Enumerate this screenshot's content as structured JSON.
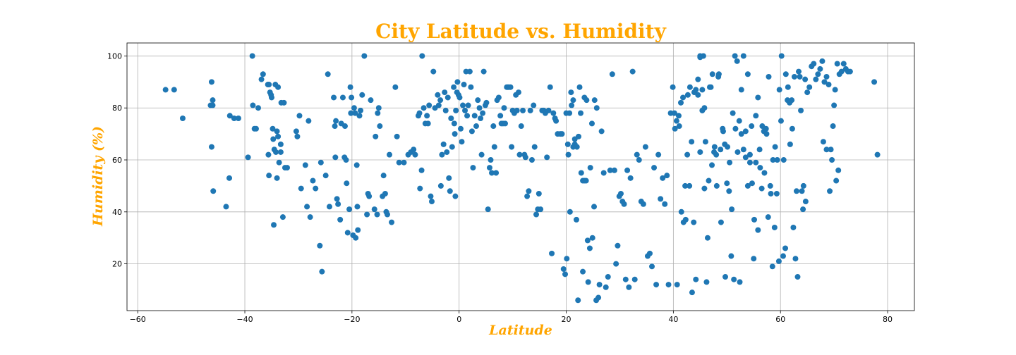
{
  "colors": {
    "title": "#FFA500",
    "axis_labels": "#FFA500",
    "points": "#1F77B4"
  },
  "chart_data": {
    "type": "scatter",
    "title": "City Latitude vs. Humidity",
    "xlabel": "Latitude",
    "ylabel": "Humidity (%)",
    "xlim": [
      -62,
      85
    ],
    "ylim": [
      2,
      105
    ],
    "xticks": [
      -60,
      -40,
      -20,
      0,
      20,
      40,
      60,
      80
    ],
    "yticks": [
      20,
      40,
      60,
      80,
      100
    ],
    "grid": true,
    "points": [
      [
        -54.8,
        87
      ],
      [
        -53.2,
        87
      ],
      [
        -51.6,
        76
      ],
      [
        -46.4,
        81
      ],
      [
        -46.2,
        90
      ],
      [
        -46,
        81
      ],
      [
        -46,
        83
      ],
      [
        -46.2,
        65
      ],
      [
        -45.9,
        48
      ],
      [
        -43.5,
        42
      ],
      [
        -42.9,
        53
      ],
      [
        -42.8,
        77
      ],
      [
        -42,
        76
      ],
      [
        -41.2,
        76
      ],
      [
        -39.4,
        61
      ],
      [
        -38.6,
        100
      ],
      [
        -38.5,
        81
      ],
      [
        -38.2,
        72
      ],
      [
        -37.9,
        72
      ],
      [
        -37.5,
        80
      ],
      [
        -36.9,
        91
      ],
      [
        -36.6,
        93
      ],
      [
        -35.7,
        89
      ],
      [
        -35.5,
        89
      ],
      [
        -35.3,
        86
      ],
      [
        -35.1,
        85
      ],
      [
        -35,
        84
      ],
      [
        -35.6,
        62
      ],
      [
        -35.5,
        54
      ],
      [
        -34.8,
        72
      ],
      [
        -34.7,
        68
      ],
      [
        -34.6,
        35
      ],
      [
        -34.5,
        64
      ],
      [
        -34.3,
        89
      ],
      [
        -34.2,
        63
      ],
      [
        -34,
        71
      ],
      [
        -33.8,
        69
      ],
      [
        -33.8,
        88
      ],
      [
        -33.6,
        59
      ],
      [
        -33.3,
        66
      ],
      [
        -33.3,
        63
      ],
      [
        -34,
        53
      ],
      [
        -33.2,
        82
      ],
      [
        -32.9,
        38
      ],
      [
        -32.7,
        82
      ],
      [
        -32.5,
        57
      ],
      [
        -32.1,
        57
      ],
      [
        -30.4,
        71
      ],
      [
        -30.2,
        69
      ],
      [
        -29.8,
        77
      ],
      [
        -29.5,
        49
      ],
      [
        -28.7,
        58
      ],
      [
        -28.4,
        42
      ],
      [
        -28.1,
        75
      ],
      [
        -27.8,
        38
      ],
      [
        -27.3,
        52
      ],
      [
        -26.8,
        49
      ],
      [
        -26,
        27
      ],
      [
        -25.8,
        59
      ],
      [
        -25.6,
        17
      ],
      [
        -24.9,
        54
      ],
      [
        -24.5,
        93
      ],
      [
        -24.2,
        42
      ],
      [
        -23.4,
        84
      ],
      [
        -23.2,
        73
      ],
      [
        -23.1,
        61
      ],
      [
        -23,
        75
      ],
      [
        -22.8,
        45
      ],
      [
        -22.6,
        43
      ],
      [
        -22.2,
        37
      ],
      [
        -22,
        74
      ],
      [
        -21.7,
        84
      ],
      [
        -21.4,
        61
      ],
      [
        -21.3,
        73
      ],
      [
        -21.1,
        60
      ],
      [
        -21,
        51
      ],
      [
        -20.8,
        32
      ],
      [
        -20.5,
        41
      ],
      [
        -20.3,
        88
      ],
      [
        -20.2,
        78
      ],
      [
        -20.1,
        84
      ],
      [
        -19.8,
        31
      ],
      [
        -19.6,
        80
      ],
      [
        -19.4,
        78
      ],
      [
        -19.3,
        30
      ],
      [
        -19.1,
        58
      ],
      [
        -19,
        42
      ],
      [
        -18.9,
        33
      ],
      [
        -18.6,
        77
      ],
      [
        -18.4,
        79
      ],
      [
        -18.1,
        85
      ],
      [
        -17.7,
        100
      ],
      [
        -17.2,
        39
      ],
      [
        -17,
        47
      ],
      [
        -16.8,
        46
      ],
      [
        -16.5,
        83
      ],
      [
        -15.8,
        41
      ],
      [
        -15.6,
        69
      ],
      [
        -15.3,
        39
      ],
      [
        -15.2,
        78
      ],
      [
        -15,
        80
      ],
      [
        -14.8,
        73
      ],
      [
        -14.3,
        46
      ],
      [
        -14.1,
        54
      ],
      [
        -13.8,
        47
      ],
      [
        -13.6,
        40
      ],
      [
        -13.4,
        39
      ],
      [
        -13,
        62
      ],
      [
        -12.6,
        36
      ],
      [
        -11.9,
        88
      ],
      [
        -11.6,
        69
      ],
      [
        -11.2,
        59
      ],
      [
        -10.3,
        59
      ],
      [
        -9.5,
        62
      ],
      [
        -9,
        63
      ],
      [
        -8.5,
        64
      ],
      [
        -8.2,
        62
      ],
      [
        -7.6,
        77
      ],
      [
        -7.4,
        78
      ],
      [
        -7.3,
        49
      ],
      [
        -7,
        56
      ],
      [
        -6.9,
        100
      ],
      [
        -6.6,
        80
      ],
      [
        -6.3,
        74
      ],
      [
        -6,
        77
      ],
      [
        -5.8,
        74
      ],
      [
        -5.6,
        81
      ],
      [
        -5.3,
        46
      ],
      [
        -5.1,
        44
      ],
      [
        -4.8,
        94
      ],
      [
        -4.5,
        80
      ],
      [
        -4,
        85
      ],
      [
        -3.8,
        81
      ],
      [
        -3.5,
        83
      ],
      [
        -3.4,
        50
      ],
      [
        -3.2,
        62
      ],
      [
        -2.9,
        66
      ],
      [
        -2.7,
        86
      ],
      [
        -2.5,
        79
      ],
      [
        -2.3,
        63
      ],
      [
        -2.1,
        84
      ],
      [
        -1.9,
        53
      ],
      [
        -1.7,
        48
      ],
      [
        -1.5,
        76
      ],
      [
        -1.3,
        65
      ],
      [
        -1,
        88
      ],
      [
        -0.9,
        74
      ],
      [
        -0.8,
        70
      ],
      [
        -0.7,
        46
      ],
      [
        -0.6,
        79
      ],
      [
        -0.4,
        86
      ],
      [
        -0.3,
        90
      ],
      [
        -0.1,
        85
      ],
      [
        0.1,
        84
      ],
      [
        0.3,
        72
      ],
      [
        0.5,
        67
      ],
      [
        0.7,
        81
      ],
      [
        0.9,
        89
      ],
      [
        1.1,
        79
      ],
      [
        1.3,
        94
      ],
      [
        1.5,
        77
      ],
      [
        1.7,
        81
      ],
      [
        2,
        94
      ],
      [
        2.2,
        88
      ],
      [
        2.4,
        71
      ],
      [
        2.6,
        57
      ],
      [
        2.9,
        77
      ],
      [
        3.2,
        73
      ],
      [
        3.5,
        83
      ],
      [
        3.8,
        80
      ],
      [
        4,
        76
      ],
      [
        4.2,
        62
      ],
      [
        4.4,
        78
      ],
      [
        4.6,
        94
      ],
      [
        4.9,
        81
      ],
      [
        5.1,
        82
      ],
      [
        5.4,
        41
      ],
      [
        5.7,
        57
      ],
      [
        5.9,
        60
      ],
      [
        6.1,
        55
      ],
      [
        6.4,
        73
      ],
      [
        6.6,
        65
      ],
      [
        6.9,
        55
      ],
      [
        7.1,
        83
      ],
      [
        7.4,
        84
      ],
      [
        7.7,
        77
      ],
      [
        7.9,
        74
      ],
      [
        8.2,
        74
      ],
      [
        8.4,
        80
      ],
      [
        8.6,
        74
      ],
      [
        8.9,
        88
      ],
      [
        9.1,
        88
      ],
      [
        9.3,
        88
      ],
      [
        9.6,
        88
      ],
      [
        9.8,
        65
      ],
      [
        10,
        79
      ],
      [
        10.3,
        78
      ],
      [
        10.6,
        85
      ],
      [
        10.8,
        79
      ],
      [
        11.1,
        86
      ],
      [
        11.3,
        62
      ],
      [
        11.6,
        73
      ],
      [
        11.9,
        79
      ],
      [
        12.2,
        62
      ],
      [
        12.4,
        61
      ],
      [
        12.7,
        46
      ],
      [
        13,
        48
      ],
      [
        13.3,
        79
      ],
      [
        13.6,
        60
      ],
      [
        13.9,
        81
      ],
      [
        14.1,
        65
      ],
      [
        14.4,
        39
      ],
      [
        14.7,
        41
      ],
      [
        14.9,
        47
      ],
      [
        15.2,
        41
      ],
      [
        15.5,
        79
      ],
      [
        15.8,
        79
      ],
      [
        16.1,
        78
      ],
      [
        16.4,
        61
      ],
      [
        16.7,
        79
      ],
      [
        17,
        88
      ],
      [
        17.3,
        24
      ],
      [
        17.6,
        78
      ],
      [
        17.9,
        76
      ],
      [
        18.1,
        75
      ],
      [
        18.4,
        70
      ],
      [
        18.9,
        70
      ],
      [
        19.2,
        70
      ],
      [
        19.5,
        18
      ],
      [
        19.8,
        16
      ],
      [
        20.1,
        22
      ],
      [
        20.4,
        62
      ],
      [
        20.7,
        40
      ],
      [
        21,
        81
      ],
      [
        21.3,
        83
      ],
      [
        21.6,
        66
      ],
      [
        21.9,
        37
      ],
      [
        22.2,
        6
      ],
      [
        22.5,
        88
      ],
      [
        22.8,
        55
      ],
      [
        23.1,
        52
      ],
      [
        23.4,
        52
      ],
      [
        23.7,
        52
      ],
      [
        24,
        29
      ],
      [
        24.4,
        26
      ],
      [
        24.8,
        74
      ],
      [
        25.2,
        42
      ],
      [
        25.6,
        6
      ],
      [
        26,
        7
      ],
      [
        20,
        78
      ],
      [
        20.3,
        66
      ],
      [
        20.6,
        78
      ],
      [
        20.9,
        86
      ],
      [
        21.3,
        65
      ],
      [
        21.6,
        68
      ],
      [
        22,
        65
      ],
      [
        22.3,
        69
      ],
      [
        22.7,
        78
      ],
      [
        23.1,
        17
      ],
      [
        23.4,
        84
      ],
      [
        23.8,
        83
      ],
      [
        24.1,
        13
      ],
      [
        24.5,
        57
      ],
      [
        24.9,
        30
      ],
      [
        25.3,
        83
      ],
      [
        25.7,
        80
      ],
      [
        26.2,
        12
      ],
      [
        26.6,
        71
      ],
      [
        27,
        55
      ],
      [
        27.4,
        11
      ],
      [
        27.8,
        15
      ],
      [
        28.2,
        56
      ],
      [
        28.6,
        93
      ],
      [
        29,
        56
      ],
      [
        29.3,
        20
      ],
      [
        29.6,
        27
      ],
      [
        29.9,
        46
      ],
      [
        30.2,
        47
      ],
      [
        30.5,
        44
      ],
      [
        30.8,
        43
      ],
      [
        31.1,
        14
      ],
      [
        31.4,
        56
      ],
      [
        31.7,
        11
      ],
      [
        32,
        53
      ],
      [
        32.4,
        94
      ],
      [
        32.8,
        14
      ],
      [
        33.2,
        62
      ],
      [
        33.6,
        60
      ],
      [
        34,
        44
      ],
      [
        34.4,
        43
      ],
      [
        34.8,
        65
      ],
      [
        35.2,
        23
      ],
      [
        35.6,
        24
      ],
      [
        36,
        19
      ],
      [
        36.4,
        57
      ],
      [
        36.8,
        12
      ],
      [
        37.2,
        62
      ],
      [
        37.6,
        45
      ],
      [
        38,
        53
      ],
      [
        38.4,
        43
      ],
      [
        38.8,
        54
      ],
      [
        39.1,
        12
      ],
      [
        39.5,
        78
      ],
      [
        39.9,
        88
      ],
      [
        40.3,
        72
      ],
      [
        40.7,
        12
      ],
      [
        41.1,
        73
      ],
      [
        41.5,
        40
      ],
      [
        41.9,
        36
      ],
      [
        42.3,
        37
      ],
      [
        42.7,
        85
      ],
      [
        43.1,
        88
      ],
      [
        43.5,
        9
      ],
      [
        43.9,
        86
      ],
      [
        44.2,
        87
      ],
      [
        44.6,
        85
      ],
      [
        45,
        63
      ],
      [
        45.4,
        87
      ],
      [
        45.8,
        49
      ],
      [
        46.2,
        13
      ],
      [
        46.6,
        52
      ],
      [
        47,
        88
      ],
      [
        47.3,
        93
      ],
      [
        47.7,
        65
      ],
      [
        48.1,
        50
      ],
      [
        48.5,
        93
      ],
      [
        48.9,
        36
      ],
      [
        49.3,
        71
      ],
      [
        49.7,
        15
      ],
      [
        50.1,
        65
      ],
      [
        50.5,
        59
      ],
      [
        50.9,
        41
      ],
      [
        51.3,
        14
      ],
      [
        51.6,
        72
      ],
      [
        52,
        63
      ],
      [
        52.4,
        13
      ],
      [
        52.7,
        87
      ],
      [
        53.1,
        64
      ],
      [
        53.5,
        71
      ],
      [
        53.9,
        50
      ],
      [
        54.3,
        59
      ],
      [
        54.6,
        73
      ],
      [
        55,
        22
      ],
      [
        55.4,
        77
      ],
      [
        55.8,
        33
      ],
      [
        56.1,
        64
      ],
      [
        56.5,
        49
      ],
      [
        56.9,
        71
      ],
      [
        57.3,
        72
      ],
      [
        57.7,
        38
      ],
      [
        58.1,
        50
      ],
      [
        58.5,
        19
      ],
      [
        58.9,
        34
      ],
      [
        59.3,
        47
      ],
      [
        59.7,
        21
      ],
      [
        60.1,
        75
      ],
      [
        60.5,
        23
      ],
      [
        60.9,
        26
      ],
      [
        61.3,
        83
      ],
      [
        61.7,
        82
      ],
      [
        62.1,
        83
      ],
      [
        62.4,
        34
      ],
      [
        62.8,
        22
      ],
      [
        63.2,
        15
      ],
      [
        63.6,
        92
      ],
      [
        64,
        48
      ],
      [
        64.3,
        50
      ],
      [
        64.7,
        44
      ],
      [
        40.2,
        78
      ],
      [
        40.6,
        75
      ],
      [
        41,
        77
      ],
      [
        41.4,
        82
      ],
      [
        41.8,
        84
      ],
      [
        42.2,
        50
      ],
      [
        42.6,
        62
      ],
      [
        43,
        50
      ],
      [
        43.4,
        67
      ],
      [
        43.8,
        36
      ],
      [
        44.2,
        14
      ],
      [
        44.6,
        91
      ],
      [
        45,
        100
      ],
      [
        45.4,
        79
      ],
      [
        45.8,
        80
      ],
      [
        45,
        99.5
      ],
      [
        45.6,
        100
      ],
      [
        46,
        67
      ],
      [
        46.4,
        30
      ],
      [
        46.8,
        88
      ],
      [
        47.2,
        58
      ],
      [
        47.6,
        63
      ],
      [
        48,
        62
      ],
      [
        48.4,
        92
      ],
      [
        48.8,
        64
      ],
      [
        49.2,
        72
      ],
      [
        49.6,
        66
      ],
      [
        50,
        51
      ],
      [
        50.4,
        48
      ],
      [
        50.8,
        23
      ],
      [
        51.1,
        78
      ],
      [
        51.5,
        100
      ],
      [
        51.9,
        98
      ],
      [
        52.3,
        75
      ],
      [
        52.7,
        70
      ],
      [
        53.1,
        100
      ],
      [
        53.5,
        61
      ],
      [
        53.9,
        93
      ],
      [
        54.3,
        62
      ],
      [
        54.7,
        51
      ],
      [
        55.1,
        37
      ],
      [
        55.4,
        59
      ],
      [
        55.8,
        84
      ],
      [
        56.2,
        57
      ],
      [
        56.6,
        73
      ],
      [
        57,
        55
      ],
      [
        57.4,
        70
      ],
      [
        57.8,
        92
      ],
      [
        58.2,
        47
      ],
      [
        58.6,
        60
      ],
      [
        59,
        65
      ],
      [
        59.4,
        60
      ],
      [
        59.8,
        87
      ],
      [
        60.2,
        100
      ],
      [
        60.6,
        60
      ],
      [
        61,
        93
      ],
      [
        61.4,
        88
      ],
      [
        61.8,
        66
      ],
      [
        62.2,
        72
      ],
      [
        62.6,
        92
      ],
      [
        63,
        48
      ],
      [
        63.4,
        94
      ],
      [
        63.8,
        79
      ],
      [
        64.2,
        41
      ],
      [
        64.6,
        91
      ],
      [
        65,
        86
      ],
      [
        65.4,
        88
      ],
      [
        65.8,
        96
      ],
      [
        66.2,
        97
      ],
      [
        66.6,
        91
      ],
      [
        67,
        93
      ],
      [
        67.4,
        95
      ],
      [
        67.8,
        98
      ],
      [
        68.2,
        90
      ],
      [
        68.6,
        92
      ],
      [
        69,
        89
      ],
      [
        69.4,
        64
      ],
      [
        69.8,
        73
      ],
      [
        70.2,
        87
      ],
      [
        70.6,
        97
      ],
      [
        71,
        93
      ],
      [
        71.4,
        94
      ],
      [
        71.8,
        97
      ],
      [
        72.2,
        95
      ],
      [
        72.6,
        94
      ],
      [
        73,
        94
      ],
      [
        68,
        67
      ],
      [
        68.6,
        64
      ],
      [
        69.2,
        48
      ],
      [
        69.6,
        60
      ],
      [
        70,
        81
      ],
      [
        70.4,
        52
      ],
      [
        70.8,
        56
      ],
      [
        77.5,
        90
      ],
      [
        78.1,
        62
      ]
    ]
  }
}
